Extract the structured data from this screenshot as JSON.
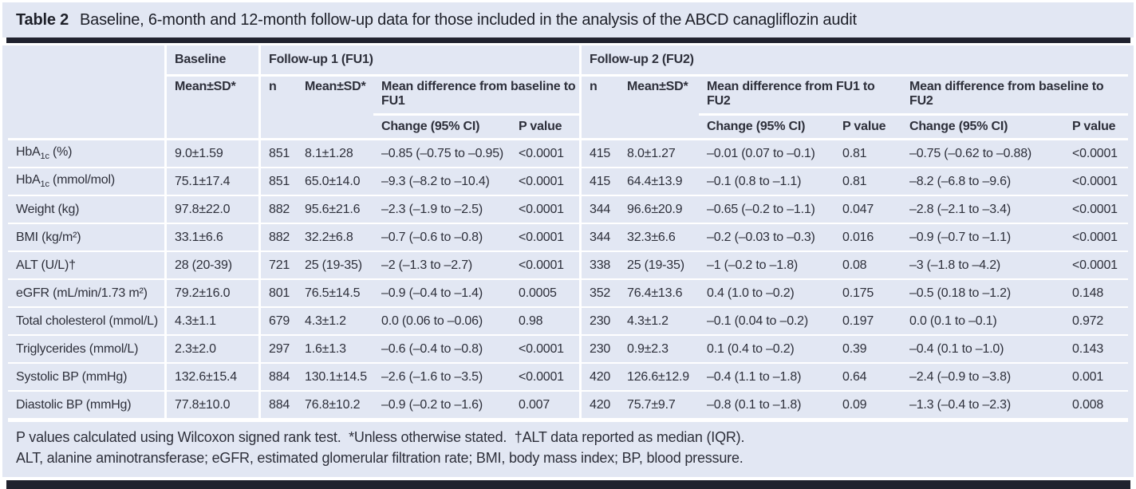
{
  "title": {
    "label": "Table 2",
    "text": "Baseline, 6-month and 12-month follow-up data for those included in the analysis of the ABCD canagliflozin audit"
  },
  "header": {
    "baseline_group": "Baseline",
    "fu1_group": "Follow-up 1 (FU1)",
    "fu2_group": "Follow-up 2 (FU2)",
    "mean_sd": "Mean±SD*",
    "n": "n",
    "diff_baseline_fu1": "Mean difference from baseline to FU1",
    "diff_fu1_fu2": "Mean difference from FU1 to FU2",
    "diff_baseline_fu2": "Mean difference from baseline to FU2",
    "change": "Change (95% CI)",
    "p_value": "P value"
  },
  "rows": [
    {
      "label_pre": "HbA",
      "label_sub": "1c",
      "label_post": " (%)",
      "baseline": "9.0±1.59",
      "fu1_n": "851",
      "fu1_mean": "8.1±1.28",
      "fu1_change": "–0.85 (–0.75 to –0.95)",
      "fu1_p": "<0.0001",
      "fu2_n": "415",
      "fu2_mean": "8.0±1.27",
      "fu2_change": "–0.01 (0.07 to –0.1)",
      "fu2_p": "0.81",
      "b2_change": "–0.75 (–0.62 to –0.88)",
      "b2_p": "<0.0001"
    },
    {
      "label_pre": "HbA",
      "label_sub": "1c",
      "label_post": " (mmol/mol)",
      "baseline": "75.1±17.4",
      "fu1_n": "851",
      "fu1_mean": "65.0±14.0",
      "fu1_change": "–9.3 (–8.2 to –10.4)",
      "fu1_p": "<0.0001",
      "fu2_n": "415",
      "fu2_mean": "64.4±13.9",
      "fu2_change": "–0.1 (0.8 to –1.1)",
      "fu2_p": "0.81",
      "b2_change": "–8.2 (–6.8 to –9.6)",
      "b2_p": "<0.0001"
    },
    {
      "label_pre": "Weight (kg)",
      "label_sub": "",
      "label_post": "",
      "baseline": "97.8±22.0",
      "fu1_n": "882",
      "fu1_mean": "95.6±21.6",
      "fu1_change": "–2.3 (–1.9 to –2.5)",
      "fu1_p": "<0.0001",
      "fu2_n": "344",
      "fu2_mean": "96.6±20.9",
      "fu2_change": "–0.65 (–0.2 to –1.1)",
      "fu2_p": "0.047",
      "b2_change": "–2.8 (–2.1 to –3.4)",
      "b2_p": "<0.0001"
    },
    {
      "label_pre": "BMI (kg/m²)",
      "label_sub": "",
      "label_post": "",
      "baseline": "33.1±6.6",
      "fu1_n": "882",
      "fu1_mean": "32.2±6.8",
      "fu1_change": "–0.7 (–0.6 to –0.8)",
      "fu1_p": "<0.0001",
      "fu2_n": "344",
      "fu2_mean": "32.3±6.6",
      "fu2_change": "–0.2 (–0.03 to –0.3)",
      "fu2_p": "0.016",
      "b2_change": "–0.9 (–0.7 to –1.1)",
      "b2_p": "<0.0001"
    },
    {
      "label_pre": "ALT (U/L)†",
      "label_sub": "",
      "label_post": "",
      "baseline": "28 (20-39)",
      "fu1_n": "721",
      "fu1_mean": "25 (19-35)",
      "fu1_change": "–2 (–1.3 to –2.7)",
      "fu1_p": "<0.0001",
      "fu2_n": "338",
      "fu2_mean": "25 (19-35)",
      "fu2_change": "–1 (–0.2 to –1.8)",
      "fu2_p": "0.08",
      "b2_change": "–3 (–1.8 to –4.2)",
      "b2_p": "<0.0001"
    },
    {
      "label_pre": "eGFR (mL/min/1.73 m²)",
      "label_sub": "",
      "label_post": "",
      "baseline": "79.2±16.0",
      "fu1_n": "801",
      "fu1_mean": "76.5±14.5",
      "fu1_change": "–0.9 (–0.4 to –1.4)",
      "fu1_p": "0.0005",
      "fu2_n": "352",
      "fu2_mean": "76.4±13.6",
      "fu2_change": "0.4 (1.0 to –0.2)",
      "fu2_p": "0.175",
      "b2_change": "–0.5 (0.18 to –1.2)",
      "b2_p": "0.148"
    },
    {
      "label_pre": "Total cholesterol (mmol/L)",
      "label_sub": "",
      "label_post": "",
      "baseline": "4.3±1.1",
      "fu1_n": "679",
      "fu1_mean": "4.3±1.2",
      "fu1_change": "0.0 (0.06 to –0.06)",
      "fu1_p": "0.98",
      "fu2_n": "230",
      "fu2_mean": "4.3±1.2",
      "fu2_change": "–0.1 (0.04 to –0.2)",
      "fu2_p": "0.197",
      "b2_change": "0.0 (0.1 to –0.1)",
      "b2_p": "0.972"
    },
    {
      "label_pre": "Triglycerides (mmol/L)",
      "label_sub": "",
      "label_post": "",
      "baseline": "2.3±2.0",
      "fu1_n": "297",
      "fu1_mean": "1.6±1.3",
      "fu1_change": "–0.6 (–0.4 to –0.8)",
      "fu1_p": "<0.0001",
      "fu2_n": "230",
      "fu2_mean": "0.9±2.3",
      "fu2_change": "0.1 (0.4 to –0.2)",
      "fu2_p": "0.39",
      "b2_change": "–0.4 (0.1 to –1.0)",
      "b2_p": "0.143"
    },
    {
      "label_pre": "Systolic BP (mmHg)",
      "label_sub": "",
      "label_post": "",
      "baseline": "132.6±15.4",
      "fu1_n": "884",
      "fu1_mean": "130.1±14.5",
      "fu1_change": "–2.6 (–1.6 to –3.5)",
      "fu1_p": "<0.0001",
      "fu2_n": "420",
      "fu2_mean": "126.6±12.9",
      "fu2_change": "–0.4 (1.1 to –1.8)",
      "fu2_p": "0.64",
      "b2_change": "–2.4 (–0.9 to –3.8)",
      "b2_p": "0.001"
    },
    {
      "label_pre": "Diastolic BP (mmHg)",
      "label_sub": "",
      "label_post": "",
      "baseline": "77.8±10.0",
      "fu1_n": "884",
      "fu1_mean": "76.8±10.2",
      "fu1_change": "–0.9 (–0.2 to –1.6)",
      "fu1_p": "0.007",
      "fu2_n": "420",
      "fu2_mean": "75.7±9.7",
      "fu2_change": "–0.8 (0.1 to –1.8)",
      "fu2_p": "0.09",
      "b2_change": "–1.3 (–0.4 to –2.3)",
      "b2_p": "0.008"
    }
  ],
  "footnotes": {
    "line1": "P values calculated using Wilcoxon signed rank test.  *Unless otherwise stated.  †ALT data reported as median (IQR).",
    "line2": "ALT, alanine aminotransferase; eGFR, estimated glomerular filtration rate; BMI, body mass index; BP, blood pressure."
  },
  "colors": {
    "panel_background": "#e2e7f3",
    "rule_bar": "#20222e",
    "text": "#2d2f3a",
    "separator_lines": "#ffffff"
  }
}
